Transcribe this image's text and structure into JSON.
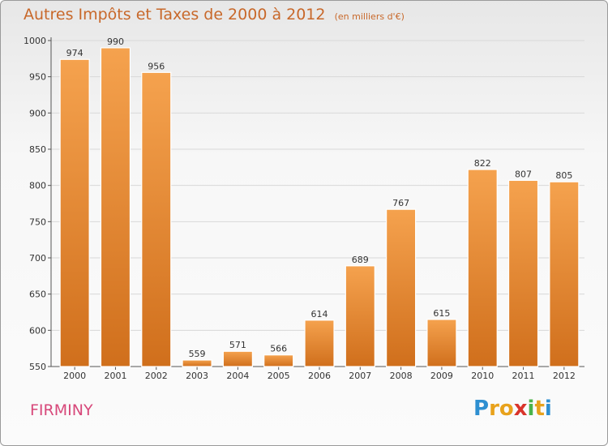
{
  "title": "Autres Impôts et Taxes de 2000 à 2012",
  "subtitle": "(en milliers d'€)",
  "town": "FIRMINY",
  "logo": {
    "letters": [
      "P",
      "r",
      "o",
      "x",
      "i",
      "t",
      "i"
    ],
    "colors": [
      "#2e8fd1",
      "#e8a21c",
      "#e8a21c",
      "#d9342b",
      "#4bb34b",
      "#e8a21c",
      "#2e8fd1"
    ]
  },
  "colors": {
    "bar_top": "#f5a24e",
    "bar_bottom": "#d06f1c",
    "title": "#c8682a",
    "town": "#d7487a"
  },
  "chart_data": {
    "type": "bar",
    "title": "Autres Impôts et Taxes de 2000 à 2012",
    "subtitle": "(en milliers d'€)",
    "categories": [
      "2000",
      "2001",
      "2002",
      "2003",
      "2004",
      "2005",
      "2006",
      "2007",
      "2008",
      "2009",
      "2010",
      "2011",
      "2012"
    ],
    "values": [
      974,
      990,
      956,
      559,
      571,
      566,
      614,
      689,
      767,
      615,
      822,
      807,
      805
    ],
    "ylim": [
      550,
      1000
    ],
    "yticks": [
      550,
      600,
      650,
      700,
      750,
      800,
      850,
      900,
      950,
      1000
    ],
    "grid": true,
    "legend": "none"
  }
}
